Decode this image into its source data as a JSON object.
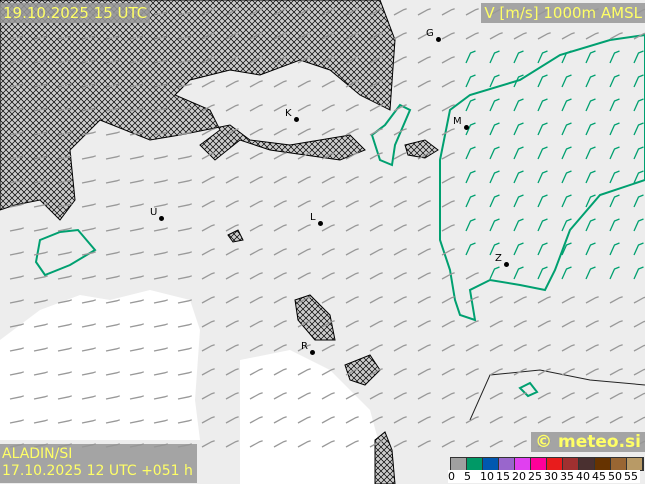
{
  "header": {
    "valid_time": "19.10.2025 15 UTC",
    "parameter": "V [m/s] 1000m AMSL"
  },
  "footer": {
    "model": "ALADIN/SI",
    "run": "17.10.2025 12 UTC +051 h",
    "copyright": "© meteo.si"
  },
  "legend": {
    "ticks": [
      "0",
      "5",
      "10",
      "15",
      "20",
      "25",
      "30",
      "35",
      "40",
      "45",
      "50",
      "55"
    ],
    "colors": [
      "#a0a0a0",
      "#009966",
      "#0058b0",
      "#9966cc",
      "#e040f0",
      "#ff0099",
      "#e81c1c",
      "#a03030",
      "#4a3030",
      "#663300",
      "#996633",
      "#b89a66"
    ]
  },
  "cities": [
    "G",
    "K",
    "M",
    "U",
    "L",
    "Z",
    "R"
  ],
  "colors": {
    "barb": "#999999",
    "barb_strong": "#00a070",
    "contour": "#00a070",
    "hatch": "#000000"
  }
}
